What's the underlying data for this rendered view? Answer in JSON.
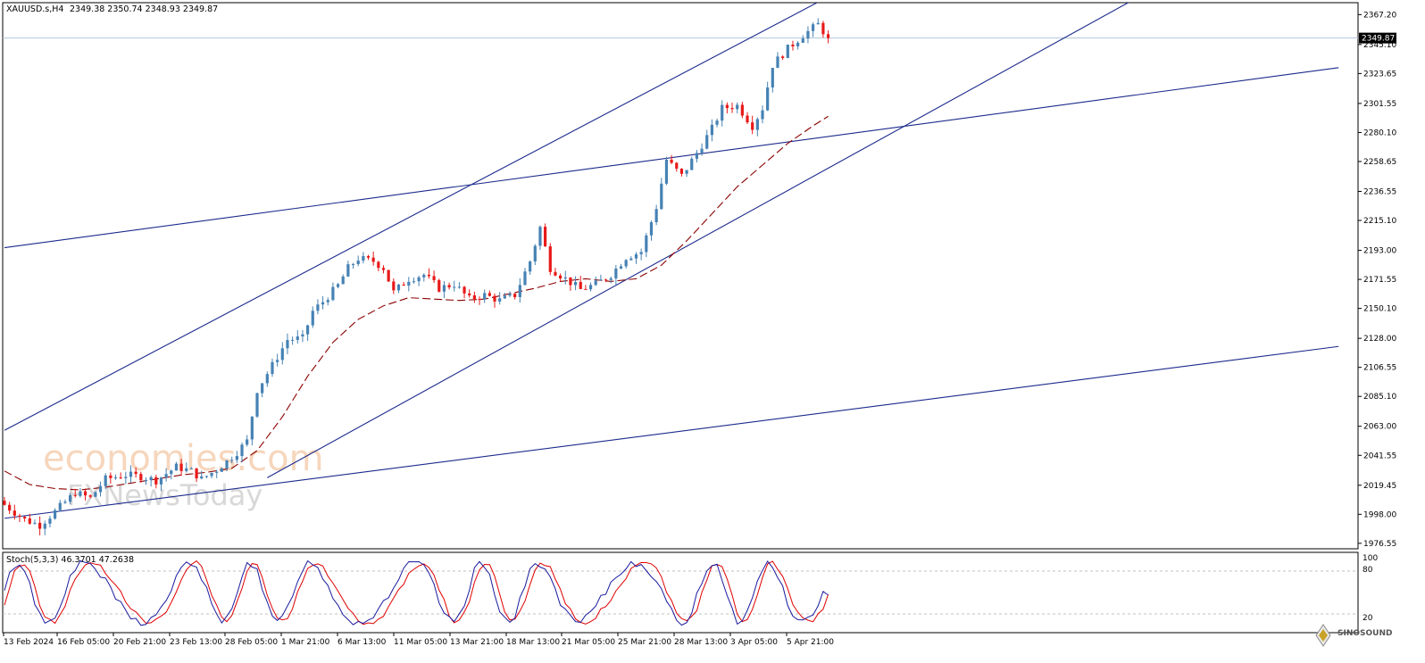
{
  "header": {
    "symbol": "XAUUSD.s,H4",
    "ohlc": "2349.38 2350.74 2348.93 2349.87"
  },
  "stoch": {
    "label": "Stoch(5,3,3) 46.3701 47.2638",
    "levels": [
      "100",
      "80",
      "20"
    ]
  },
  "watermark": {
    "primary": "economies.com",
    "secondary": "FXNewsToday",
    "corner": "SINOSOUND"
  },
  "chart_data": {
    "type": "candlestick",
    "symbol": "XAUUSD.s",
    "timeframe": "H4",
    "current_price": "2349.87",
    "y_ticks": [
      "2367.20",
      "2345.10",
      "2323.65",
      "2301.55",
      "2280.10",
      "2258.65",
      "2236.55",
      "2215.10",
      "2193.00",
      "2171.55",
      "2150.10",
      "2128.00",
      "2106.55",
      "2085.10",
      "2063.00",
      "2041.55",
      "2019.45",
      "1998.00",
      "1976.55"
    ],
    "y_range": [
      1972.5,
      2376
    ],
    "x_ticks": [
      "13 Feb 2024",
      "16 Feb 05:00",
      "20 Feb 21:00",
      "23 Feb 13:00",
      "28 Feb 05:00",
      "1 Mar 21:00",
      "6 Mar 13:00",
      "11 Mar 05:00",
      "13 Mar 21:00",
      "18 Mar 13:00",
      "21 Mar 05:00",
      "25 Mar 21:00",
      "28 Mar 13:00",
      "3 Apr 05:00",
      "5 Apr 21:00"
    ],
    "close_path": [
      [
        0,
        2005
      ],
      [
        4,
        1994
      ],
      [
        7,
        1990
      ],
      [
        10,
        2000
      ],
      [
        14,
        2014
      ],
      [
        17,
        2010
      ],
      [
        20,
        2024
      ],
      [
        24,
        2027
      ],
      [
        27,
        2026
      ],
      [
        30,
        2023
      ],
      [
        34,
        2033
      ],
      [
        37,
        2030
      ],
      [
        39,
        2024
      ],
      [
        42,
        2031
      ],
      [
        44,
        2037
      ],
      [
        46,
        2044
      ],
      [
        48,
        2052
      ],
      [
        50,
        2090
      ],
      [
        53,
        2108
      ],
      [
        56,
        2127
      ],
      [
        59,
        2128
      ],
      [
        61,
        2148
      ],
      [
        63,
        2155
      ],
      [
        66,
        2167
      ],
      [
        68,
        2180
      ],
      [
        70,
        2187
      ],
      [
        73,
        2185
      ],
      [
        75,
        2180
      ],
      [
        77,
        2162
      ],
      [
        80,
        2172
      ],
      [
        83,
        2175
      ],
      [
        86,
        2165
      ],
      [
        89,
        2168
      ],
      [
        92,
        2157
      ],
      [
        95,
        2160
      ],
      [
        98,
        2156
      ],
      [
        101,
        2160
      ],
      [
        104,
        2185
      ],
      [
        106,
        2210
      ],
      [
        108,
        2180
      ],
      [
        111,
        2172
      ],
      [
        114,
        2164
      ],
      [
        117,
        2168
      ],
      [
        120,
        2175
      ],
      [
        123,
        2188
      ],
      [
        126,
        2192
      ],
      [
        129,
        2225
      ],
      [
        131,
        2260
      ],
      [
        134,
        2248
      ],
      [
        137,
        2265
      ],
      [
        140,
        2283
      ],
      [
        142,
        2298
      ],
      [
        145,
        2300
      ],
      [
        148,
        2285
      ],
      [
        150,
        2298
      ],
      [
        152,
        2330
      ],
      [
        155,
        2342
      ],
      [
        158,
        2352
      ],
      [
        161,
        2360
      ],
      [
        163,
        2349.87
      ]
    ],
    "moving_average": {
      "style": "dashed",
      "color": "#8b0000",
      "points": [
        [
          0,
          2030
        ],
        [
          5,
          2020
        ],
        [
          10,
          2017
        ],
        [
          15,
          2016
        ],
        [
          20,
          2018
        ],
        [
          25,
          2021
        ],
        [
          30,
          2024
        ],
        [
          35,
          2027
        ],
        [
          40,
          2029
        ],
        [
          45,
          2032
        ],
        [
          50,
          2045
        ],
        [
          55,
          2070
        ],
        [
          60,
          2100
        ],
        [
          65,
          2125
        ],
        [
          70,
          2142
        ],
        [
          75,
          2152
        ],
        [
          80,
          2158
        ],
        [
          85,
          2157
        ],
        [
          90,
          2156
        ],
        [
          95,
          2157
        ],
        [
          100,
          2161
        ],
        [
          105,
          2165
        ],
        [
          110,
          2170
        ],
        [
          115,
          2172
        ],
        [
          120,
          2170
        ],
        [
          125,
          2172
        ],
        [
          130,
          2182
        ],
        [
          135,
          2200
        ],
        [
          140,
          2220
        ],
        [
          145,
          2240
        ],
        [
          150,
          2256
        ],
        [
          155,
          2272
        ],
        [
          160,
          2285
        ],
        [
          163,
          2292
        ]
      ]
    },
    "trend_lines": [
      {
        "name": "upper-channel-line",
        "from": [
          0,
          2060
        ],
        "to": [
          173,
          2400
        ]
      },
      {
        "name": "lower-channel-line",
        "from": [
          52,
          2025
        ],
        "to": [
          234,
          2400
        ]
      },
      {
        "name": "upper-support-line",
        "from": [
          0,
          2195
        ],
        "to": [
          264,
          2328
        ]
      },
      {
        "name": "lower-support-line",
        "from": [
          0,
          1995
        ],
        "to": [
          264,
          2122
        ]
      }
    ],
    "stochastic": {
      "main_color": "#1a1a9e",
      "signal_color": "#e00000",
      "levels": [
        100,
        80,
        20
      ]
    },
    "colors": {
      "bull": "#4682b4",
      "bear": "#e81919",
      "grid": "#c0c0c0",
      "price_line": "#b0c4de"
    }
  }
}
